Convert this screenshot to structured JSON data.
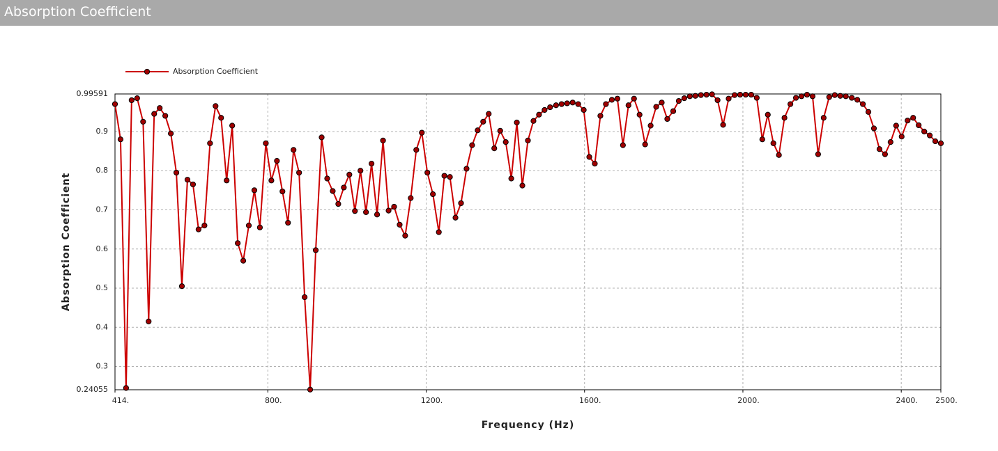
{
  "panel_title": "Absorption Coefficient",
  "chart_data": {
    "type": "line",
    "x_label": "Frequency (Hz)",
    "y_label": "Absorption Coefficient",
    "xlim": [
      414,
      2500
    ],
    "ylim": [
      0.24055,
      0.99591
    ],
    "xticks": [
      {
        "value": 414,
        "label": "414."
      },
      {
        "value": 800,
        "label": "800."
      },
      {
        "value": 1200,
        "label": "1200."
      },
      {
        "value": 1600,
        "label": "1600."
      },
      {
        "value": 2000,
        "label": "2000."
      },
      {
        "value": 2400,
        "label": "2400."
      },
      {
        "value": 2500,
        "label": "2500."
      }
    ],
    "yticks": [
      0.24055,
      0.3,
      0.4,
      0.5,
      0.6,
      0.7,
      0.8,
      0.9,
      0.99591
    ],
    "grid": true,
    "legend": "top-left",
    "x": [
      414,
      428,
      442,
      456,
      470,
      485,
      499,
      513,
      527,
      541,
      555,
      569,
      583,
      597,
      611,
      625,
      640,
      654,
      668,
      682,
      696,
      710,
      724,
      738,
      752,
      766,
      780,
      795,
      809,
      823,
      837,
      851,
      865,
      879,
      893,
      907,
      921,
      936,
      950,
      964,
      978,
      992,
      1006,
      1020,
      1034,
      1048,
      1062,
      1076,
      1091,
      1105,
      1119,
      1133,
      1147,
      1161,
      1175,
      1189,
      1203,
      1217,
      1232,
      1246,
      1260,
      1274,
      1288,
      1302,
      1316,
      1330,
      1344,
      1358,
      1372,
      1387,
      1401,
      1415,
      1429,
      1443,
      1457,
      1471,
      1485,
      1499,
      1513,
      1528,
      1542,
      1556,
      1570,
      1584,
      1598,
      1612,
      1626,
      1640,
      1654,
      1669,
      1683,
      1697,
      1711,
      1725,
      1739,
      1753,
      1767,
      1781,
      1795,
      1809,
      1824,
      1838,
      1852,
      1866,
      1880,
      1894,
      1908,
      1922,
      1936,
      1950,
      1964,
      1979,
      1993,
      2007,
      2021,
      2035,
      2049,
      2063,
      2077,
      2091,
      2105,
      2120,
      2134,
      2148,
      2162,
      2176,
      2190,
      2204,
      2218,
      2232,
      2246,
      2260,
      2275,
      2289,
      2303,
      2317,
      2331,
      2345,
      2359,
      2373,
      2387,
      2401,
      2416,
      2430,
      2444,
      2458,
      2472,
      2486,
      2500
    ],
    "series": [
      {
        "name": "Absorption Coefficient",
        "color": "#cc0000",
        "marker_color": "#a00000",
        "values": [
          0.97,
          0.88,
          0.245,
          0.98,
          0.985,
          0.925,
          0.415,
          0.945,
          0.96,
          0.94,
          0.895,
          0.795,
          0.505,
          0.777,
          0.765,
          0.65,
          0.66,
          0.87,
          0.965,
          0.935,
          0.775,
          0.915,
          0.615,
          0.57,
          0.66,
          0.75,
          0.655,
          0.87,
          0.775,
          0.825,
          0.747,
          0.667,
          0.853,
          0.795,
          0.477,
          0.241,
          0.597,
          0.885,
          0.78,
          0.748,
          0.715,
          0.757,
          0.79,
          0.697,
          0.8,
          0.694,
          0.818,
          0.688,
          0.877,
          0.698,
          0.708,
          0.662,
          0.634,
          0.73,
          0.853,
          0.897,
          0.795,
          0.74,
          0.643,
          0.787,
          0.784,
          0.68,
          0.717,
          0.805,
          0.865,
          0.903,
          0.925,
          0.945,
          0.857,
          0.902,
          0.873,
          0.78,
          0.923,
          0.762,
          0.877,
          0.927,
          0.943,
          0.955,
          0.962,
          0.967,
          0.97,
          0.972,
          0.974,
          0.97,
          0.955,
          0.835,
          0.818,
          0.94,
          0.97,
          0.981,
          0.984,
          0.865,
          0.967,
          0.984,
          0.943,
          0.867,
          0.915,
          0.963,
          0.974,
          0.932,
          0.952,
          0.978,
          0.985,
          0.99,
          0.991,
          0.993,
          0.994,
          0.995,
          0.98,
          0.917,
          0.984,
          0.993,
          0.994,
          0.994,
          0.994,
          0.986,
          0.88,
          0.943,
          0.87,
          0.84,
          0.935,
          0.97,
          0.986,
          0.99,
          0.994,
          0.99,
          0.842,
          0.935,
          0.988,
          0.993,
          0.991,
          0.99,
          0.986,
          0.981,
          0.97,
          0.95,
          0.908,
          0.855,
          0.842,
          0.873,
          0.915,
          0.887,
          0.928,
          0.935,
          0.916,
          0.9,
          0.89,
          0.875,
          0.87
        ]
      }
    ]
  }
}
